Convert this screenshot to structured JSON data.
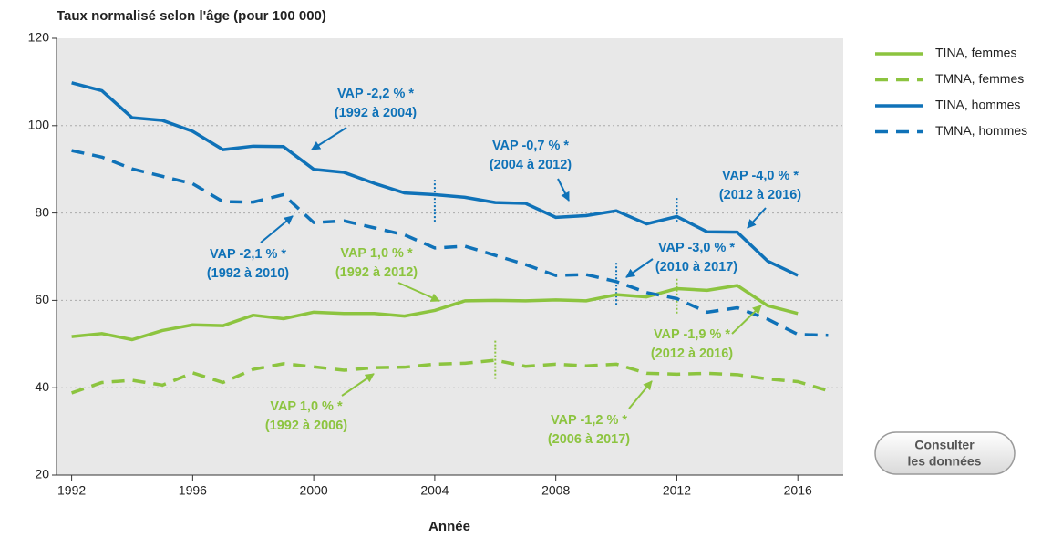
{
  "chart_data": {
    "type": "line",
    "y_label": "Taux normalisé selon l'âge (pour 100 000)",
    "x_label": "Année",
    "x": [
      1992,
      1993,
      1994,
      1995,
      1996,
      1997,
      1998,
      1999,
      2000,
      2001,
      2002,
      2003,
      2004,
      2005,
      2006,
      2007,
      2008,
      2009,
      2010,
      2011,
      2012,
      2013,
      2014,
      2015,
      2016,
      2017
    ],
    "series": [
      {
        "name": "TINA, femmes",
        "color": "#8cc43f",
        "dash": false,
        "values": [
          51.7,
          52.4,
          51.0,
          53.1,
          54.4,
          54.2,
          56.6,
          55.8,
          57.3,
          57.0,
          57.0,
          56.4,
          57.7,
          59.9,
          60.0,
          59.9,
          60.1,
          59.9,
          61.3,
          60.8,
          62.7,
          62.3,
          63.4,
          58.8,
          57.0,
          null
        ]
      },
      {
        "name": "TMNA, femmes",
        "color": "#8cc43f",
        "dash": true,
        "values": [
          38.8,
          41.2,
          41.7,
          40.6,
          43.4,
          41.2,
          44.2,
          45.5,
          44.8,
          44.0,
          44.6,
          44.7,
          45.4,
          45.6,
          46.3,
          44.9,
          45.4,
          45.0,
          45.4,
          43.3,
          43.1,
          43.3,
          43.0,
          42.0,
          41.4,
          39.3
        ]
      },
      {
        "name": "TINA, hommes",
        "color": "#0f72b8",
        "dash": false,
        "values": [
          109.8,
          108.0,
          101.8,
          101.2,
          98.7,
          94.5,
          95.3,
          95.2,
          90.0,
          89.3,
          86.8,
          84.6,
          84.2,
          83.6,
          82.4,
          82.2,
          79.0,
          79.4,
          80.5,
          77.5,
          79.2,
          75.7,
          75.6,
          69.0,
          65.7,
          null
        ]
      },
      {
        "name": "TMNA, hommes",
        "color": "#0f72b8",
        "dash": true,
        "values": [
          94.3,
          92.8,
          90.1,
          88.4,
          86.7,
          82.6,
          82.5,
          84.2,
          77.8,
          78.2,
          76.6,
          75.0,
          72.0,
          72.4,
          70.3,
          68.2,
          65.7,
          65.9,
          64.3,
          61.8,
          60.4,
          57.3,
          58.3,
          55.7,
          52.2,
          52.0
        ]
      }
    ],
    "xlim": [
      1991.5,
      2017.5
    ],
    "xticks": [
      1992,
      1996,
      2000,
      2004,
      2008,
      2012,
      2016
    ],
    "ylim": [
      20,
      120
    ],
    "yticks": [
      20,
      40,
      60,
      80,
      100,
      120
    ],
    "grid": true,
    "breakpoints": [
      {
        "x": 2004,
        "y": [
          78,
          88
        ],
        "color": "#0f72b8"
      },
      {
        "x": 2010,
        "y": [
          59,
          69
        ],
        "color": "#0f72b8"
      },
      {
        "x": 2012,
        "y": [
          78,
          83.5
        ],
        "color": "#0f72b8"
      },
      {
        "x": 2012,
        "y": [
          57,
          65
        ],
        "color": "#8cc43f"
      },
      {
        "x": 2006,
        "y": [
          42,
          51
        ],
        "color": "#8cc43f"
      }
    ],
    "annotations": [
      {
        "lines": [
          "VAP -2,2 % *",
          "(1992 à 2004)"
        ],
        "color": "#0f72b8"
      },
      {
        "lines": [
          "VAP -0,7 % *",
          "(2004 à 2012)"
        ],
        "color": "#0f72b8"
      },
      {
        "lines": [
          "VAP -4,0 % *",
          "(2012 à 2016)"
        ],
        "color": "#0f72b8"
      },
      {
        "lines": [
          "VAP -2,1 % *",
          "(1992 à 2010)"
        ],
        "color": "#0f72b8"
      },
      {
        "lines": [
          "VAP -3,0 % *",
          "(2010 à 2017)"
        ],
        "color": "#0f72b8"
      },
      {
        "lines": [
          "VAP 1,0 % *",
          "(1992 à 2012)"
        ],
        "color": "#8cc43f"
      },
      {
        "lines": [
          "VAP -1,9 % *",
          "(2012 à 2016)"
        ],
        "color": "#8cc43f"
      },
      {
        "lines": [
          "VAP 1,0 % *",
          "(1992 à 2006)"
        ],
        "color": "#8cc43f"
      },
      {
        "lines": [
          "VAP -1,2 % *",
          "(2006 à 2017)"
        ],
        "color": "#8cc43f"
      }
    ]
  },
  "button": {
    "lines": [
      "Consulter",
      "les données"
    ]
  }
}
